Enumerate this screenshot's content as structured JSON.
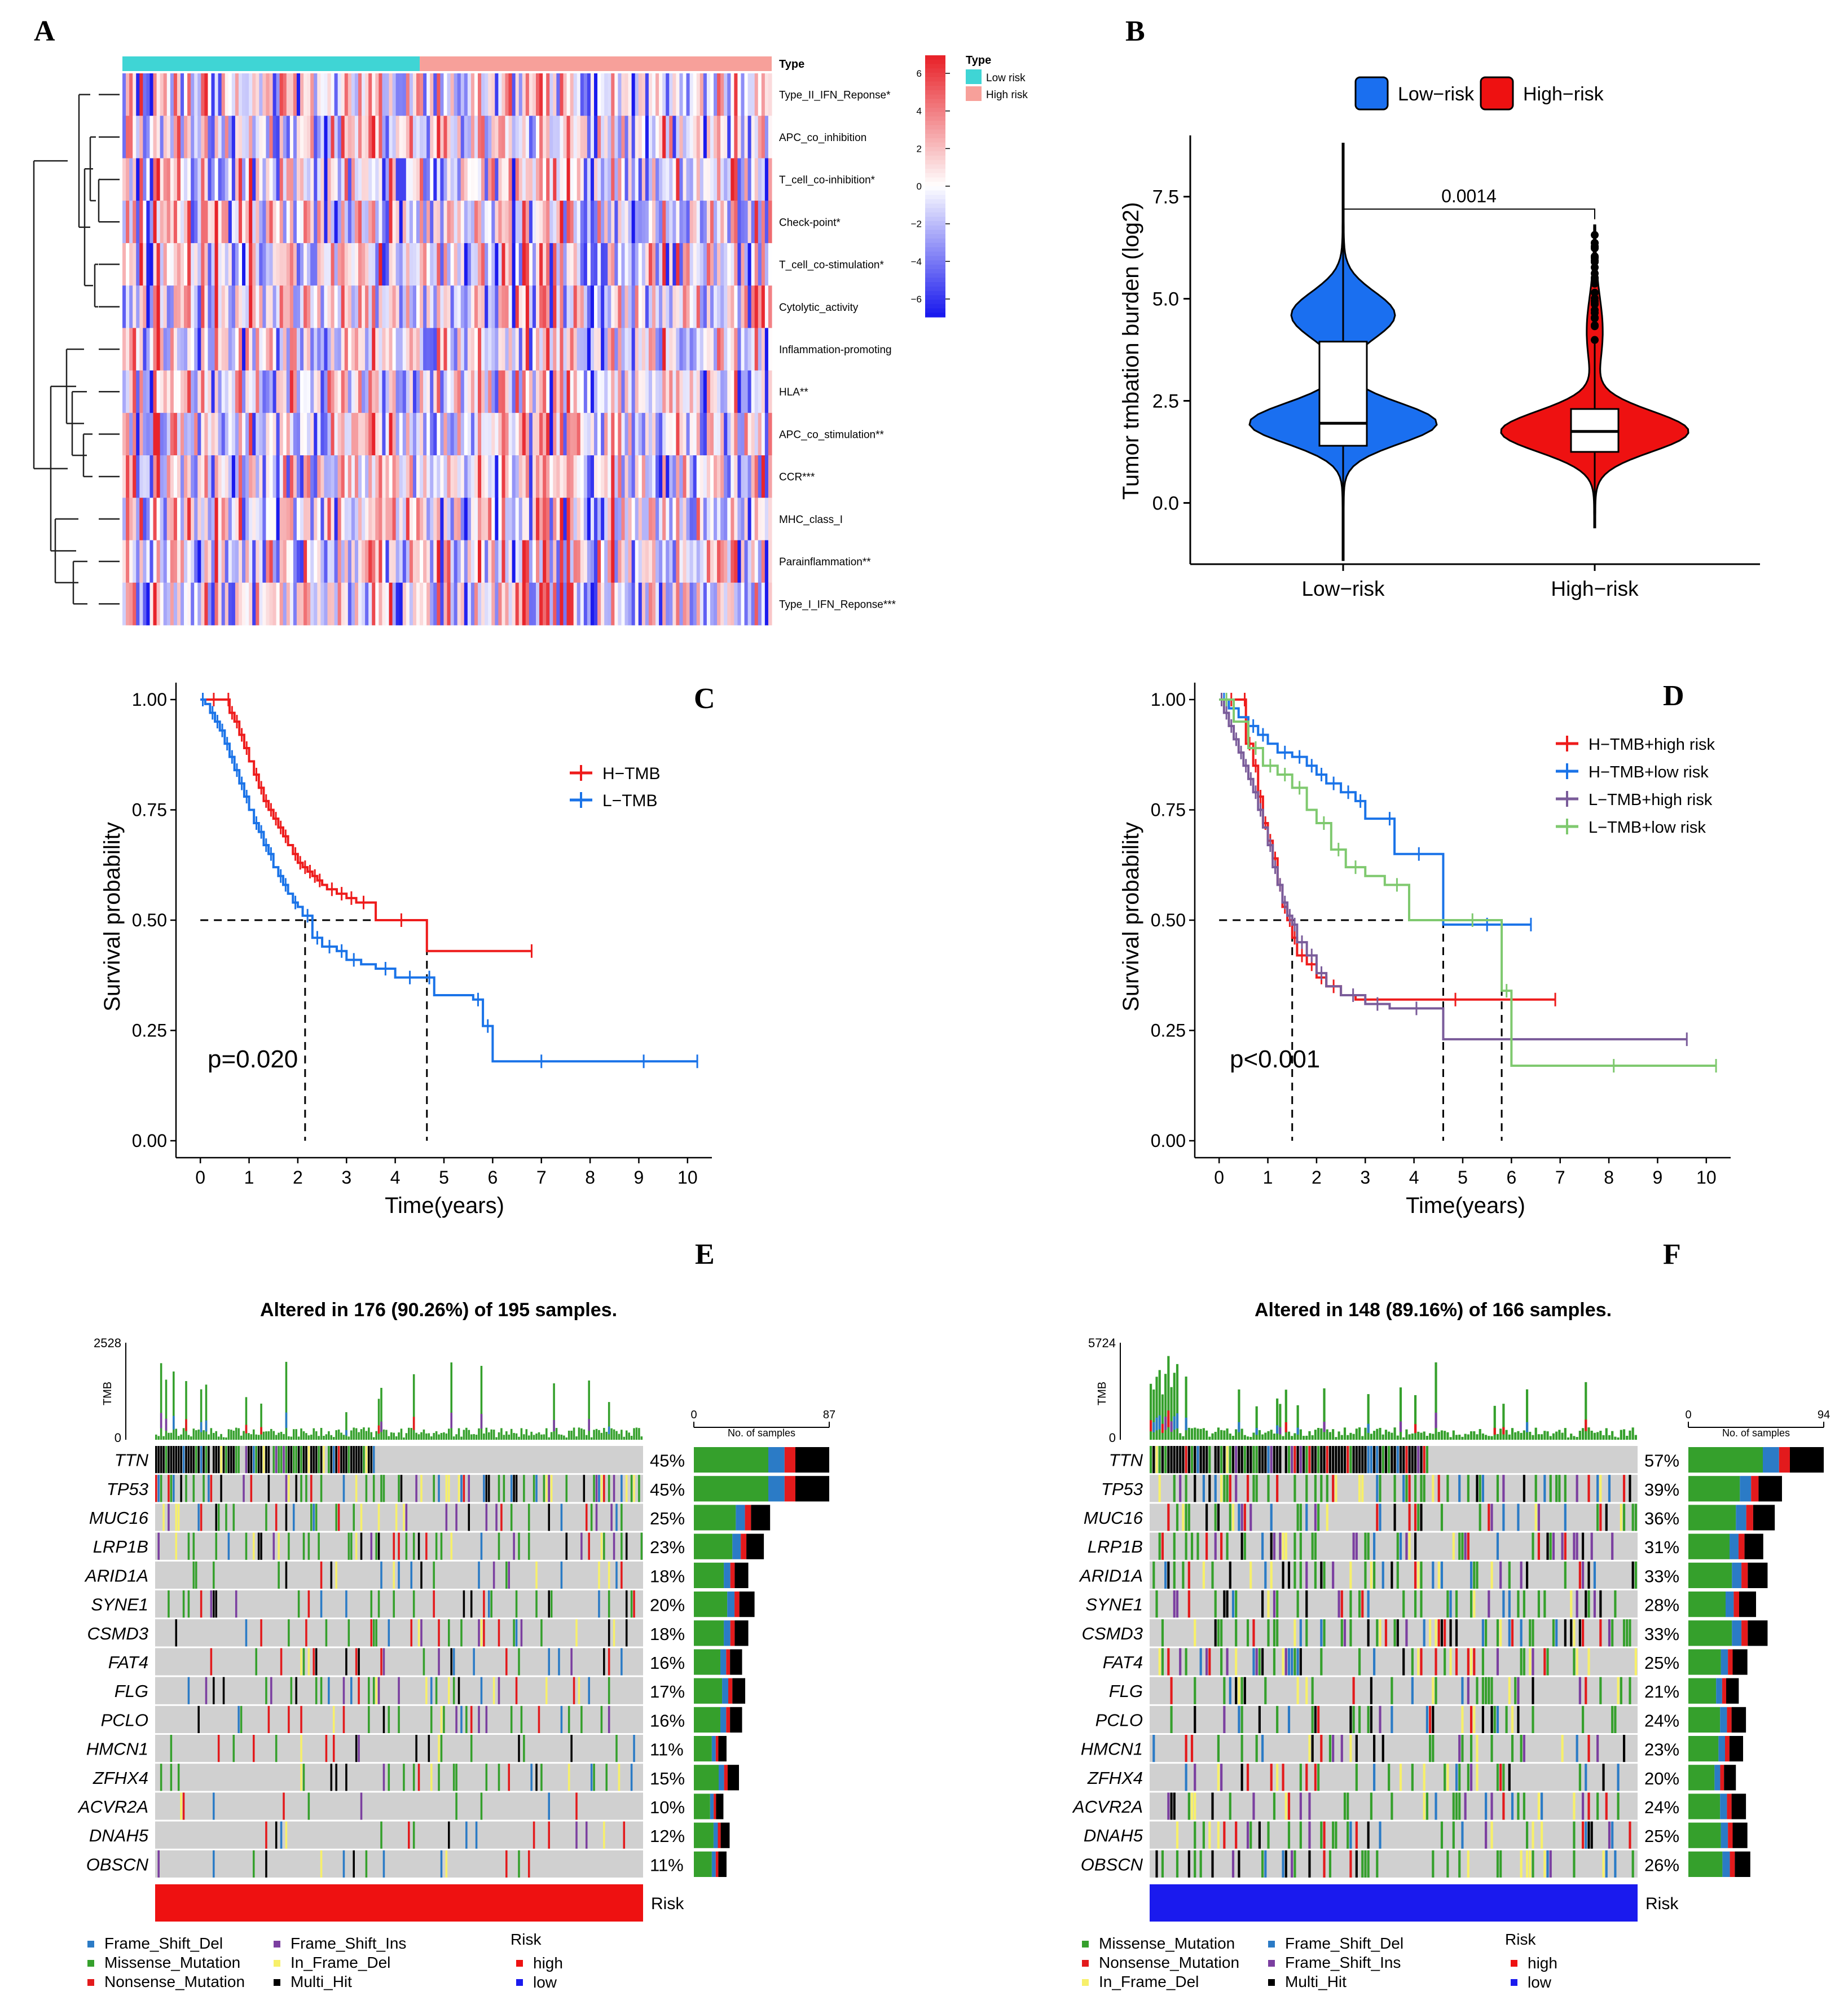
{
  "panel_labels": [
    "A",
    "B",
    "C",
    "D",
    "E",
    "F"
  ],
  "colors": {
    "low_risk_bar": "#3fd5d5",
    "high_risk_bar": "#f7a09a",
    "heat_high": "#e8232a",
    "heat_mid": "#ffffff",
    "heat_low": "#1a1aee",
    "violin_low": "#1a6ff0",
    "violin_high": "#ee1111",
    "km_red": "#ee1c1c",
    "km_blue": "#1a73e8",
    "km_purple": "#7a5c9a",
    "km_green": "#7fc96f",
    "missense": "#35a02c",
    "frameshift_del": "#2b7bc6",
    "nonsense": "#e31a1c",
    "frameshift_ins": "#7b3fa0",
    "inframe_del": "#f7f06a",
    "multi_hit": "#000000",
    "grid_gray": "#d0d0d0",
    "risk_high": "#ee1111",
    "risk_low": "#1a1aee"
  },
  "chart_data": [
    {
      "panel": "A",
      "type": "heatmap",
      "annotation_title": "Type",
      "rows": [
        "Type_II_IFN_Reponse*",
        "APC_co_inhibition",
        "T_cell_co-inhibition*",
        "Check-point*",
        "T_cell_co-stimulation*",
        "Cytolytic_activity",
        "Inflammation-promoting",
        "HLA**",
        "APC_co_stimulation**",
        "CCR***",
        "MHC_class_I",
        "Parainflammation**",
        "Type_I_IFN_Reponse***"
      ],
      "legend": {
        "title": "Type",
        "entries": [
          "Low risk",
          "High risk"
        ]
      },
      "colorbar_ticks": [
        "6",
        "4",
        "2",
        "0",
        "−2",
        "−4",
        "−6"
      ],
      "value_range": [
        -6,
        6
      ],
      "low_risk_fraction": 0.46
    },
    {
      "panel": "B",
      "type": "violin",
      "legend": [
        "Low−risk",
        "High−risk"
      ],
      "ylabel": "Tumor tmbation burden (log2)",
      "yticks": [
        "0.0",
        "2.5",
        "5.0",
        "7.5"
      ],
      "ylim": [
        -1.5,
        9
      ],
      "categories": [
        "Low−risk",
        "High−risk"
      ],
      "groups": [
        {
          "name": "Low−risk",
          "min": -0.9,
          "q1": 1.4,
          "median": 1.95,
          "q3": 3.95,
          "max": 7.4,
          "violin_min": -1.4,
          "violin_max": 8.8
        },
        {
          "name": "High−risk",
          "min": -0.3,
          "q1": 1.25,
          "median": 1.75,
          "q3": 2.3,
          "max": 3.9,
          "violin_min": -0.6,
          "violin_max": 6.8
        }
      ],
      "p_value": "0.0014"
    },
    {
      "panel": "C",
      "type": "line",
      "subtype": "kaplan-meier",
      "xlabel": "Time(years)",
      "ylabel": "Survival probability",
      "xticks": [
        "0",
        "1",
        "2",
        "3",
        "4",
        "5",
        "6",
        "7",
        "8",
        "9",
        "10"
      ],
      "yticks": [
        "0.00",
        "0.25",
        "0.50",
        "0.75",
        "1.00"
      ],
      "xlim": [
        -0.5,
        10.5
      ],
      "ylim": [
        0,
        1
      ],
      "pvalue": "p=0.020",
      "median_lines_x": [
        2.15,
        4.65
      ],
      "series": [
        {
          "name": "H−TMB",
          "color": "#ee1c1c",
          "x": [
            0,
            0.55,
            0.6,
            0.7,
            0.8,
            0.9,
            1.0,
            1.1,
            1.2,
            1.3,
            1.4,
            1.5,
            1.6,
            1.7,
            1.8,
            1.9,
            2.0,
            2.1,
            2.2,
            2.3,
            2.4,
            2.5,
            2.6,
            2.8,
            3.0,
            3.2,
            3.5,
            3.6,
            4.65,
            6.8
          ],
          "y": [
            1.0,
            1.0,
            0.97,
            0.95,
            0.92,
            0.89,
            0.86,
            0.83,
            0.8,
            0.77,
            0.75,
            0.73,
            0.71,
            0.69,
            0.67,
            0.65,
            0.63,
            0.62,
            0.61,
            0.6,
            0.59,
            0.58,
            0.57,
            0.56,
            0.55,
            0.54,
            0.54,
            0.5,
            0.43,
            0.43
          ]
        },
        {
          "name": "L−TMB",
          "color": "#1a73e8",
          "x": [
            0,
            0.1,
            0.2,
            0.3,
            0.4,
            0.5,
            0.6,
            0.7,
            0.8,
            0.9,
            1.0,
            1.1,
            1.2,
            1.3,
            1.4,
            1.5,
            1.6,
            1.7,
            1.8,
            1.9,
            2.0,
            2.1,
            2.3,
            2.5,
            2.8,
            3.0,
            3.3,
            3.6,
            4.0,
            4.6,
            4.8,
            5.2,
            5.6,
            5.8,
            6.0,
            8.0,
            10.2
          ],
          "y": [
            1.0,
            0.99,
            0.97,
            0.95,
            0.93,
            0.9,
            0.87,
            0.84,
            0.81,
            0.78,
            0.75,
            0.72,
            0.7,
            0.67,
            0.65,
            0.62,
            0.6,
            0.58,
            0.56,
            0.54,
            0.53,
            0.51,
            0.46,
            0.44,
            0.43,
            0.41,
            0.4,
            0.39,
            0.37,
            0.37,
            0.33,
            0.33,
            0.32,
            0.26,
            0.18,
            0.18,
            0.18
          ]
        }
      ]
    },
    {
      "panel": "D",
      "type": "line",
      "subtype": "kaplan-meier",
      "xlabel": "Time(years)",
      "ylabel": "Survival probability",
      "xticks": [
        "0",
        "1",
        "2",
        "3",
        "4",
        "5",
        "6",
        "7",
        "8",
        "9",
        "10"
      ],
      "yticks": [
        "0.00",
        "0.25",
        "0.50",
        "0.75",
        "1.00"
      ],
      "xlim": [
        -0.5,
        10.5
      ],
      "ylim": [
        0,
        1
      ],
      "pvalue": "p<0.001",
      "median_lines_x": [
        1.5,
        4.6,
        5.8
      ],
      "series": [
        {
          "name": "H−TMB+high risk",
          "color": "#ee1c1c",
          "x": [
            0,
            0.5,
            0.55,
            0.7,
            0.8,
            0.9,
            1.0,
            1.1,
            1.2,
            1.3,
            1.4,
            1.5,
            1.6,
            1.8,
            2.0,
            2.2,
            2.5,
            2.8,
            6.9
          ],
          "y": [
            1.0,
            1.0,
            0.9,
            0.85,
            0.78,
            0.72,
            0.68,
            0.64,
            0.58,
            0.53,
            0.5,
            0.46,
            0.42,
            0.4,
            0.37,
            0.35,
            0.33,
            0.32,
            0.32
          ]
        },
        {
          "name": "H−TMB+low risk",
          "color": "#1a73e8",
          "x": [
            0,
            0.2,
            0.4,
            0.6,
            0.8,
            1.0,
            1.2,
            1.5,
            1.8,
            2.0,
            2.2,
            2.5,
            2.8,
            3.0,
            3.4,
            3.6,
            4.6,
            6.4
          ],
          "y": [
            1.0,
            0.98,
            0.96,
            0.94,
            0.92,
            0.9,
            0.88,
            0.87,
            0.85,
            0.83,
            0.81,
            0.79,
            0.77,
            0.73,
            0.73,
            0.65,
            0.49,
            0.49
          ]
        },
        {
          "name": "L−TMB+high risk",
          "color": "#7a5c9a",
          "x": [
            0,
            0.1,
            0.2,
            0.3,
            0.4,
            0.5,
            0.6,
            0.7,
            0.8,
            0.9,
            1.0,
            1.1,
            1.2,
            1.3,
            1.4,
            1.5,
            1.6,
            1.8,
            2.0,
            2.2,
            2.5,
            3.0,
            3.5,
            4.6,
            9.6
          ],
          "y": [
            1.0,
            0.97,
            0.94,
            0.91,
            0.88,
            0.85,
            0.82,
            0.79,
            0.75,
            0.71,
            0.67,
            0.62,
            0.58,
            0.54,
            0.51,
            0.49,
            0.45,
            0.42,
            0.38,
            0.35,
            0.33,
            0.31,
            0.3,
            0.23,
            0.23
          ]
        },
        {
          "name": "L−TMB+low risk",
          "color": "#7fc96f",
          "x": [
            0,
            0.3,
            0.6,
            0.9,
            1.2,
            1.5,
            1.8,
            2.0,
            2.3,
            2.6,
            3.0,
            3.4,
            3.9,
            4.6,
            5.8,
            6.0,
            10.2
          ],
          "y": [
            1.0,
            0.95,
            0.89,
            0.85,
            0.83,
            0.8,
            0.75,
            0.72,
            0.66,
            0.62,
            0.6,
            0.58,
            0.5,
            0.5,
            0.34,
            0.17,
            0.17
          ]
        }
      ]
    },
    {
      "panel": "E",
      "type": "oncoplot",
      "title": "Altered in 176 (90.26%) of 195 samples.",
      "tmb_label": "TMB",
      "tmb_max": "2528",
      "tmb_min": "0",
      "nsamples_label": "No. of samples",
      "nsamples_max": "87",
      "nsamples_min": "0",
      "risk_label": "Risk",
      "risk_group": "high",
      "genes": [
        "TTN",
        "TP53",
        "MUC16",
        "LRP1B",
        "ARID1A",
        "SYNE1",
        "CSMD3",
        "FAT4",
        "FLG",
        "PCLO",
        "HMCN1",
        "ZFHX4",
        "ACVR2A",
        "DNAH5",
        "OBSCN"
      ],
      "percents": [
        "45%",
        "45%",
        "25%",
        "23%",
        "18%",
        "20%",
        "18%",
        "16%",
        "17%",
        "16%",
        "11%",
        "15%",
        "10%",
        "12%",
        "11%"
      ],
      "counts": [
        87,
        87,
        49,
        45,
        35,
        39,
        35,
        31,
        33,
        31,
        21,
        29,
        19,
        23,
        21
      ],
      "legend_variants": [
        "Frame_Shift_Del",
        "Frame_Shift_Ins",
        "Missense_Mutation",
        "In_Frame_Del",
        "Nonsense_Mutation",
        "Multi_Hit"
      ],
      "legend_risk_title": "Risk",
      "legend_risk": [
        "high",
        "low"
      ]
    },
    {
      "panel": "F",
      "type": "oncoplot",
      "title": "Altered in 148 (89.16%) of 166 samples.",
      "tmb_label": "TMB",
      "tmb_max": "5724",
      "tmb_min": "0",
      "nsamples_label": "No. of samples",
      "nsamples_max": "94",
      "nsamples_min": "0",
      "risk_label": "Risk",
      "risk_group": "low",
      "genes": [
        "TTN",
        "TP53",
        "MUC16",
        "LRP1B",
        "ARID1A",
        "SYNE1",
        "CSMD3",
        "FAT4",
        "FLG",
        "PCLO",
        "HMCN1",
        "ZFHX4",
        "ACVR2A",
        "DNAH5",
        "OBSCN"
      ],
      "percents": [
        "57%",
        "39%",
        "36%",
        "31%",
        "33%",
        "28%",
        "33%",
        "25%",
        "21%",
        "24%",
        "23%",
        "20%",
        "24%",
        "25%",
        "26%"
      ],
      "counts": [
        94,
        65,
        60,
        52,
        55,
        47,
        55,
        41,
        35,
        40,
        38,
        33,
        40,
        41,
        43
      ],
      "legend_variants": [
        "Missense_Mutation",
        "Frame_Shift_Del",
        "Nonsense_Mutation",
        "Frame_Shift_Ins",
        "In_Frame_Del",
        "Multi_Hit"
      ],
      "legend_risk_title": "Risk",
      "legend_risk": [
        "high",
        "low"
      ]
    }
  ]
}
